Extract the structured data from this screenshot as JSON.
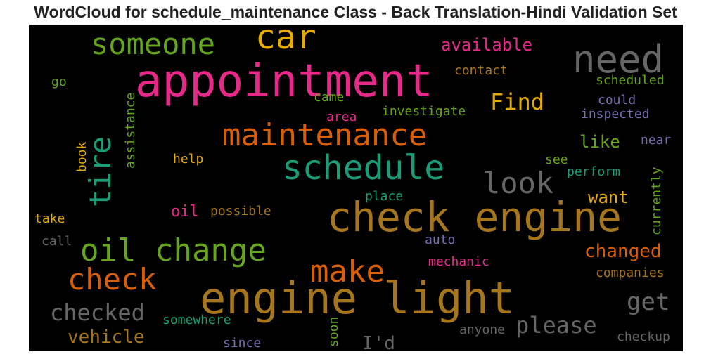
{
  "chart_data": {
    "type": "wordcloud",
    "title": "WordCloud for schedule_maintenance Class - Back Translation-Hindi Validation Set",
    "words": [
      {
        "text": "appointment",
        "color": "#e7298a"
      },
      {
        "text": "engine light",
        "color": "#a6761d"
      },
      {
        "text": "check engine",
        "color": "#a6761d"
      },
      {
        "text": "maintenance",
        "color": "#d95f02"
      },
      {
        "text": "schedule",
        "color": "#1b9e77"
      },
      {
        "text": "oil change",
        "color": "#66a61e"
      },
      {
        "text": "need",
        "color": "#666666"
      },
      {
        "text": "someone",
        "color": "#66a61e"
      },
      {
        "text": "car",
        "color": "#e6ab02"
      },
      {
        "text": "make",
        "color": "#d95f02"
      },
      {
        "text": "check",
        "color": "#d95f02"
      },
      {
        "text": "tire",
        "color": "#1b9e77"
      },
      {
        "text": "look",
        "color": "#666666"
      },
      {
        "text": "checked",
        "color": "#666666"
      },
      {
        "text": "please",
        "color": "#666666"
      },
      {
        "text": "get",
        "color": "#666666"
      },
      {
        "text": "Find",
        "color": "#e6ab02"
      },
      {
        "text": "vehicle",
        "color": "#a6761d"
      },
      {
        "text": "changed",
        "color": "#d95f02"
      },
      {
        "text": "available",
        "color": "#e7298a"
      },
      {
        "text": "I'd",
        "color": "#666666"
      },
      {
        "text": "want",
        "color": "#e6ab02"
      },
      {
        "text": "like",
        "color": "#66a61e"
      },
      {
        "text": "oil",
        "color": "#e7298a"
      },
      {
        "text": "contact",
        "color": "#a6761d"
      },
      {
        "text": "scheduled",
        "color": "#66a61e"
      },
      {
        "text": "could",
        "color": "#7570b3"
      },
      {
        "text": "inspected",
        "color": "#7570b3"
      },
      {
        "text": "investigate",
        "color": "#66a61e"
      },
      {
        "text": "near",
        "color": "#7570b3"
      },
      {
        "text": "see",
        "color": "#66a61e"
      },
      {
        "text": "perform",
        "color": "#1b9e77"
      },
      {
        "text": "currently",
        "color": "#66a61e"
      },
      {
        "text": "possible",
        "color": "#a6761d"
      },
      {
        "text": "companies",
        "color": "#a6761d"
      },
      {
        "text": "mechanic",
        "color": "#e7298a"
      },
      {
        "text": "auto",
        "color": "#7570b3"
      },
      {
        "text": "somewhere",
        "color": "#1b9e77"
      },
      {
        "text": "anyone",
        "color": "#666666"
      },
      {
        "text": "checkup",
        "color": "#666666"
      },
      {
        "text": "since",
        "color": "#7570b3"
      },
      {
        "text": "soon",
        "color": "#66a61e"
      },
      {
        "text": "place",
        "color": "#1b9e77"
      },
      {
        "text": "help",
        "color": "#e6ab02"
      },
      {
        "text": "book",
        "color": "#e6ab02"
      },
      {
        "text": "assistance",
        "color": "#66a61e"
      },
      {
        "text": "go",
        "color": "#66a61e"
      },
      {
        "text": "came",
        "color": "#66a61e"
      },
      {
        "text": "area",
        "color": "#e7298a"
      },
      {
        "text": "take",
        "color": "#e6ab02"
      },
      {
        "text": "call",
        "color": "#666666"
      }
    ]
  }
}
